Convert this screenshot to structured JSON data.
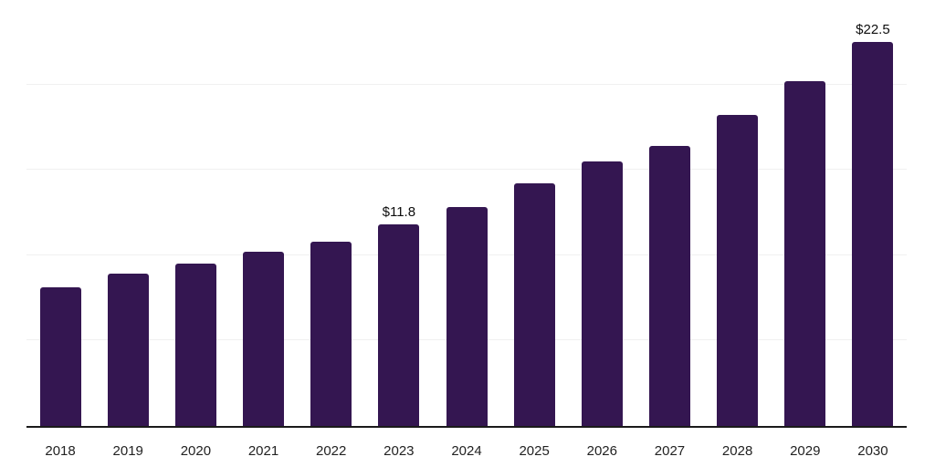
{
  "chart_data": {
    "type": "bar",
    "categories": [
      "2018",
      "2019",
      "2020",
      "2021",
      "2022",
      "2023",
      "2024",
      "2025",
      "2026",
      "2027",
      "2028",
      "2029",
      "2030"
    ],
    "values": [
      8.1,
      8.9,
      9.5,
      10.2,
      10.8,
      11.8,
      12.8,
      14.2,
      15.5,
      16.4,
      18.2,
      20.2,
      22.5
    ],
    "data_labels": [
      "",
      "",
      "",
      "",
      "",
      "$11.8",
      "",
      "",
      "",
      "",
      "",
      "",
      "$22.5"
    ],
    "title": "",
    "xlabel": "",
    "ylabel": "",
    "ylim": [
      0,
      25
    ],
    "gridline_values": [
      5,
      10,
      15,
      20,
      25
    ],
    "grid": "horizontal",
    "legend": "none",
    "y_tick_labels_visible": false,
    "colors": {
      "bar": "#341651",
      "axis": "#1a1a1a",
      "gridline": "#f0f0f0",
      "tick_label": "#222222",
      "value_label": "#0d0d0d",
      "background": "#ffffff"
    }
  }
}
